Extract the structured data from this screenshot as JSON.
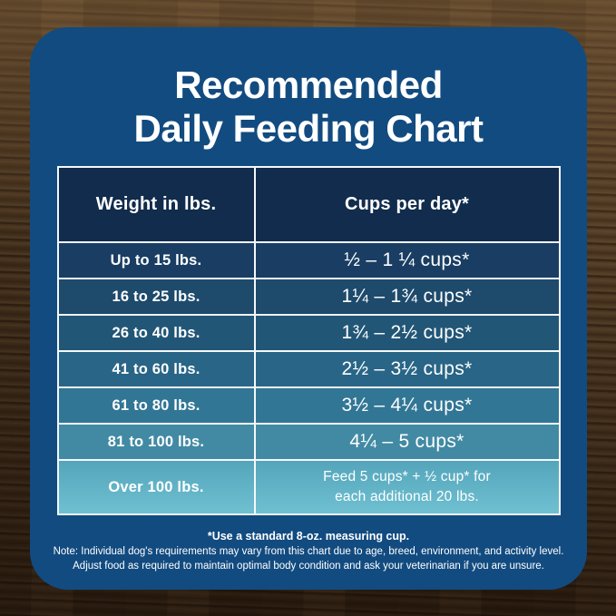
{
  "title": {
    "line1": "Recommended",
    "line2": "Daily Feeding Chart"
  },
  "table": {
    "headers": {
      "weight": "Weight in lbs.",
      "cups": "Cups per day*"
    },
    "rows": [
      {
        "weight": "Up to 15 lbs.",
        "cups": "½ – 1 ¼ cups*",
        "bg": "#1a3e63"
      },
      {
        "weight": "16 to 25 lbs.",
        "cups": "1¼ – 1¾ cups*",
        "bg": "#1e4a6c"
      },
      {
        "weight": "26 to 40 lbs.",
        "cups": "1¾ – 2½ cups*",
        "bg": "#225677"
      },
      {
        "weight": "41 to 60 lbs.",
        "cups": "2½ – 3½ cups*",
        "bg": "#296586"
      },
      {
        "weight": "61 to 80 lbs.",
        "cups": "3½ – 4¼ cups*",
        "bg": "#327695"
      },
      {
        "weight": "81 to 100 lbs.",
        "cups": "4¼ – 5 cups*",
        "bg": "#428aa4"
      },
      {
        "weight": "Over 100 lbs.",
        "cups_line1": "Feed 5 cups* + ½ cup* for",
        "cups_line2": "each additional 20 lbs.",
        "bg": "linear-gradient(180deg, #54a5bb, #6fc0d1)"
      }
    ]
  },
  "footnotes": {
    "cup": "*Use a standard 8-oz. measuring cup.",
    "note_line1": "Note: Individual dog's requirements may vary from this chart due to age, breed, environment, and activity level.",
    "note_line2": "Adjust food as required to maintain optimal body condition and ask your veterinarian if you are unsure."
  },
  "colors": {
    "card_bg": "#124b80",
    "header_bg": "#112c4c",
    "table_border": "#f5f8fa",
    "text": "#ffffff",
    "wood_light": "#7d5e3a",
    "wood_dark": "#2a1a0e"
  },
  "chart_data": {
    "type": "table",
    "title": "Recommended Daily Feeding Chart",
    "columns": [
      "Weight in lbs.",
      "Cups per day*"
    ],
    "rows": [
      [
        "Up to 15 lbs.",
        "½ – 1 ¼ cups*"
      ],
      [
        "16 to 25 lbs.",
        "1¼ – 1¾ cups*"
      ],
      [
        "26 to 40 lbs.",
        "1¾ – 2½ cups*"
      ],
      [
        "41 to 60 lbs.",
        "2½ – 3½ cups*"
      ],
      [
        "61 to 80 lbs.",
        "3½ – 4¼ cups*"
      ],
      [
        "81 to 100 lbs.",
        "4¼ – 5 cups*"
      ],
      [
        "Over 100 lbs.",
        "Feed 5 cups* + ½ cup* for each additional 20 lbs."
      ]
    ],
    "footnotes": [
      "*Use a standard 8-oz. measuring cup.",
      "Note: Individual dog's requirements may vary from this chart due to age, breed, environment, and activity level. Adjust food as required to maintain optimal body condition and ask your veterinarian if you are unsure."
    ],
    "layout_hints": {
      "row_color_ramp": [
        "#1a3e63",
        "#1e4a6c",
        "#225677",
        "#296586",
        "#327695",
        "#428aa4",
        "#5fb2c6"
      ],
      "header_color": "#112c4c"
    }
  }
}
